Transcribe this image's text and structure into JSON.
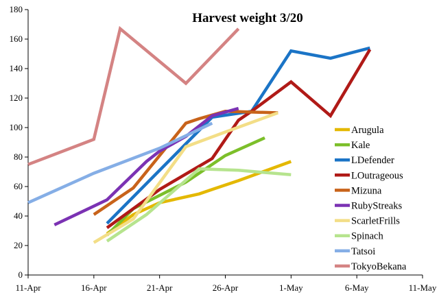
{
  "chart_data": {
    "type": "line",
    "title": "Harvest weight 3/20",
    "xlabel": "",
    "ylabel": "",
    "ylim": [
      0,
      180
    ],
    "yticks": [
      0,
      20,
      40,
      60,
      80,
      100,
      120,
      140,
      160,
      180
    ],
    "xlim": [
      "2014-04-11",
      "2014-05-11"
    ],
    "xticks": [
      {
        "date": "2014-04-11",
        "label": "11-Apr"
      },
      {
        "date": "2014-04-16",
        "label": "16-Apr"
      },
      {
        "date": "2014-04-21",
        "label": "21-Apr"
      },
      {
        "date": "2014-04-26",
        "label": "26-Apr"
      },
      {
        "date": "2014-05-01",
        "label": "1-May"
      },
      {
        "date": "2014-05-06",
        "label": "6-May"
      },
      {
        "date": "2014-05-11",
        "label": "11-May"
      }
    ],
    "grid": false,
    "legend_position": "right",
    "series": [
      {
        "name": "Arugula",
        "color": "#e4b800",
        "points": [
          [
            "2014-04-17",
            28
          ],
          [
            "2014-04-19",
            41
          ],
          [
            "2014-04-21",
            49
          ],
          [
            "2014-04-24",
            55
          ],
          [
            "2014-04-25",
            58
          ],
          [
            "2014-04-27",
            64
          ],
          [
            "2014-05-01",
            77
          ]
        ]
      },
      {
        "name": "Kale",
        "color": "#7cbf2a",
        "points": [
          [
            "2014-04-17",
            27
          ],
          [
            "2014-04-19",
            45
          ],
          [
            "2014-04-23",
            63
          ],
          [
            "2014-04-26",
            81
          ],
          [
            "2014-04-29",
            93
          ]
        ]
      },
      {
        "name": "LDefender",
        "color": "#1b74c6",
        "points": [
          [
            "2014-04-17",
            35
          ],
          [
            "2014-04-25",
            107
          ],
          [
            "2014-04-28",
            111
          ],
          [
            "2014-05-01",
            152
          ],
          [
            "2014-05-04",
            147
          ],
          [
            "2014-05-07",
            154
          ]
        ]
      },
      {
        "name": "LOutrageous",
        "color": "#b01a17",
        "points": [
          [
            "2014-04-17",
            32
          ],
          [
            "2014-04-21",
            58
          ],
          [
            "2014-04-25",
            79
          ],
          [
            "2014-04-27",
            105
          ],
          [
            "2014-04-28",
            111
          ],
          [
            "2014-05-01",
            131
          ],
          [
            "2014-05-04",
            108
          ],
          [
            "2014-05-07",
            153
          ]
        ]
      },
      {
        "name": "Mizuna",
        "color": "#c8631a",
        "points": [
          [
            "2014-04-16",
            41
          ],
          [
            "2014-04-19",
            59
          ],
          [
            "2014-04-23",
            103
          ],
          [
            "2014-04-24",
            106
          ],
          [
            "2014-04-26",
            111
          ],
          [
            "2014-04-30",
            110
          ]
        ]
      },
      {
        "name": "RubyStreaks",
        "color": "#7b32b3",
        "points": [
          [
            "2014-04-13",
            34
          ],
          [
            "2014-04-17",
            51
          ],
          [
            "2014-04-20",
            77
          ],
          [
            "2014-04-21",
            84
          ],
          [
            "2014-04-23",
            94
          ],
          [
            "2014-04-25",
            108
          ],
          [
            "2014-04-27",
            113
          ]
        ]
      },
      {
        "name": "ScarletFrills",
        "color": "#f3de87",
        "points": [
          [
            "2014-04-16",
            22
          ],
          [
            "2014-04-19",
            38
          ],
          [
            "2014-04-23",
            87
          ],
          [
            "2014-04-26",
            97
          ],
          [
            "2014-04-30",
            110
          ]
        ]
      },
      {
        "name": "Spinach",
        "color": "#b6e48e",
        "points": [
          [
            "2014-04-17",
            23
          ],
          [
            "2014-04-20",
            41
          ],
          [
            "2014-04-24",
            72
          ],
          [
            "2014-04-27",
            71
          ],
          [
            "2014-05-01",
            68
          ]
        ]
      },
      {
        "name": "Tatsoi",
        "color": "#85aee6",
        "points": [
          [
            "2014-04-11",
            49
          ],
          [
            "2014-04-16",
            69
          ],
          [
            "2014-04-21",
            86
          ],
          [
            "2014-04-25",
            103
          ]
        ]
      },
      {
        "name": "TokyoBekana",
        "color": "#d48383",
        "points": [
          [
            "2014-04-11",
            75
          ],
          [
            "2014-04-16",
            92
          ],
          [
            "2014-04-18",
            167
          ],
          [
            "2014-04-23",
            130
          ],
          [
            "2014-04-27",
            167
          ]
        ]
      }
    ]
  }
}
